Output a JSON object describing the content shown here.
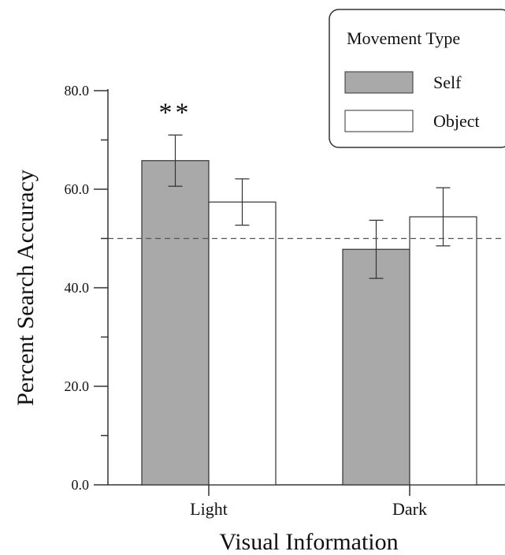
{
  "chart_data": {
    "type": "bar",
    "xlabel": "Visual Information",
    "ylabel": "Percent Search Accuracy",
    "categories": [
      "Light",
      "Dark"
    ],
    "series": [
      {
        "name": "Self",
        "values": [
          65.8,
          47.8
        ],
        "error": [
          5.2,
          5.9
        ],
        "color": "#a9a9a9"
      },
      {
        "name": "Object",
        "values": [
          57.4,
          54.4
        ],
        "error": [
          4.7,
          5.9
        ],
        "color": "#ffffff"
      }
    ],
    "ylim": [
      0,
      80
    ],
    "yticks": [
      "0.0",
      "20.0",
      "40.0",
      "60.0",
      "80.0"
    ],
    "reference_line": {
      "value": 50,
      "style": "dashed"
    },
    "annotations": [
      {
        "text": "**",
        "category": "Light",
        "series": "Self"
      }
    ],
    "legend": {
      "title": "Movement Type",
      "placement": "top-right"
    },
    "grid": false
  }
}
